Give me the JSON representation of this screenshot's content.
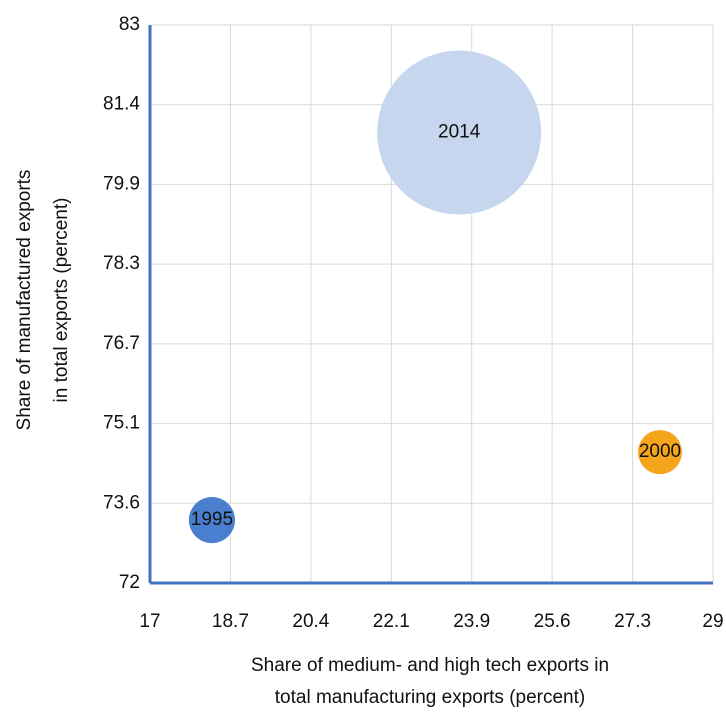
{
  "chart_data": {
    "type": "bubble",
    "x_label": [
      "Share of medium- and high tech exports in",
      "total manufacturing exports (percent)"
    ],
    "y_label": [
      "Share of manufactured exports",
      "in total exports (percent)"
    ],
    "labels": [
      "1995",
      "2000",
      "2014"
    ],
    "x": [
      18.32,
      27.87,
      23.59
    ],
    "values": [
      73.24,
      74.58,
      80.88
    ],
    "sizes": [
      7.9,
      7.2,
      100
    ],
    "colors": [
      "#4a7fd0",
      "#f5a51c",
      "#c5d6ee"
    ],
    "xlim": [
      17,
      29
    ],
    "xticks": [
      17,
      {
        "value": 18.714,
        "label": "18.7"
      },
      {
        "value": 20.429,
        "label": "20.4"
      },
      {
        "value": 22.143,
        "label": "22.1"
      },
      {
        "value": 23.857,
        "label": "23.9"
      },
      {
        "value": 25.571,
        "label": "25.6"
      },
      {
        "value": 27.286,
        "label": "27.3"
      },
      29
    ],
    "ylim": [
      72,
      83
    ],
    "yticks": [
      72,
      {
        "value": 73.571,
        "label": "73.6"
      },
      {
        "value": 75.143,
        "label": "75.1"
      },
      {
        "value": 76.714,
        "label": "76.7"
      },
      {
        "value": 78.286,
        "label": "78.3"
      },
      {
        "value": 79.857,
        "label": "79.9"
      },
      {
        "value": 81.429,
        "label": "81.4"
      },
      83
    ],
    "grid": true,
    "axis_color": "#4472c4"
  }
}
